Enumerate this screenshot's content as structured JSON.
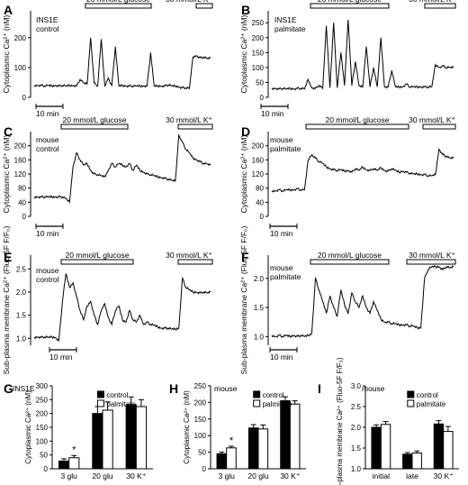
{
  "chart_data": [
    {
      "panel": "A",
      "type": "line",
      "ylabel": "Cytoplasmic Ca²⁺ (nM)",
      "yticks": [
        0,
        100,
        200
      ],
      "ylim": [
        0,
        290
      ],
      "label_lines": [
        "INS1E",
        "control"
      ],
      "stimuli": [
        {
          "label": "20 mmol/L glucose"
        },
        {
          "label": "30 mmol/L K⁺"
        }
      ],
      "scale_bar": "10 min",
      "series": [
        {
          "x": [
            0,
            1,
            2,
            3,
            4,
            5,
            6,
            7,
            8,
            9,
            10,
            11,
            12,
            13,
            14,
            15,
            16,
            17,
            18,
            19,
            20,
            21,
            22,
            23,
            24,
            25,
            26,
            27,
            28,
            29,
            30,
            31,
            32,
            33,
            34,
            35,
            36,
            37,
            38,
            39,
            40,
            41,
            42,
            43,
            44,
            45,
            46,
            47,
            48,
            49,
            50
          ],
          "y": [
            40,
            40,
            40,
            38,
            40,
            38,
            40,
            38,
            40,
            38,
            40,
            40,
            38,
            60,
            48,
            45,
            200,
            48,
            38,
            195,
            38,
            65,
            38,
            170,
            38,
            40,
            38,
            38,
            38,
            38,
            38,
            38,
            38,
            150,
            38,
            38,
            38,
            38,
            42,
            38,
            38,
            35,
            32,
            32,
            30,
            135,
            140,
            132,
            135,
            130,
            132
          ]
        }
      ]
    },
    {
      "panel": "B",
      "type": "line",
      "ylabel": "Cytoplasmic Ca²⁺ (nM)",
      "yticks": [
        0,
        50,
        100,
        150,
        200,
        250
      ],
      "ylim": [
        0,
        290
      ],
      "label_lines": [
        "INS1E",
        "palmitate"
      ],
      "stimuli": [
        {
          "label": "20 mmol/L glucose"
        },
        {
          "label": "30 mmol/L K⁺"
        }
      ],
      "scale_bar": "10 min",
      "series": [
        {
          "x": [
            0,
            1,
            2,
            3,
            4,
            5,
            6,
            7,
            8,
            9,
            10,
            11,
            12,
            13,
            14,
            15,
            16,
            17,
            18,
            19,
            20,
            21,
            22,
            23,
            24,
            25,
            26,
            27,
            28,
            29,
            30,
            31,
            32,
            33,
            34,
            35,
            36,
            37,
            38,
            39,
            40,
            41,
            42,
            43,
            44,
            45,
            46,
            47,
            48,
            49,
            50
          ],
          "y": [
            30,
            30,
            28,
            30,
            28,
            30,
            28,
            30,
            30,
            28,
            60,
            32,
            30,
            40,
            30,
            240,
            32,
            250,
            32,
            150,
            40,
            260,
            40,
            120,
            38,
            35,
            170,
            35,
            100,
            35,
            200,
            35,
            35,
            90,
            35,
            35,
            35,
            45,
            35,
            35,
            35,
            35,
            35,
            35,
            35,
            110,
            100,
            105,
            100,
            100,
            100
          ]
        }
      ]
    },
    {
      "panel": "C",
      "type": "line",
      "ylabel": "Cytoplasmic Ca²⁺ (nM)",
      "yticks": [
        0,
        40,
        80,
        120,
        160,
        200
      ],
      "ylim": [
        0,
        240
      ],
      "label_lines": [
        "mouse",
        "control"
      ],
      "stimuli": [
        {
          "label": "20 mmol/L glucose"
        },
        {
          "label": "30 mmol/L K⁺"
        }
      ],
      "scale_bar": "10 min",
      "series": [
        {
          "x": [
            0,
            1,
            2,
            3,
            4,
            5,
            6,
            7,
            8,
            9,
            10,
            11,
            12,
            13,
            14,
            15,
            16,
            17,
            18,
            19,
            20,
            21,
            22,
            23,
            24,
            25,
            26,
            27,
            28,
            29,
            30,
            31,
            32,
            33,
            34,
            35,
            36,
            37,
            38,
            39,
            40,
            41,
            42,
            43,
            44,
            45,
            46,
            47,
            48,
            49,
            50
          ],
          "y": [
            55,
            55,
            55,
            55,
            55,
            55,
            55,
            55,
            55,
            50,
            40,
            140,
            180,
            160,
            145,
            150,
            130,
            120,
            118,
            115,
            112,
            130,
            150,
            140,
            150,
            145,
            140,
            150,
            130,
            145,
            130,
            125,
            120,
            118,
            115,
            112,
            110,
            108,
            105,
            102,
            100,
            230,
            210,
            190,
            180,
            165,
            160,
            155,
            150,
            148,
            145
          ]
        }
      ]
    },
    {
      "panel": "D",
      "type": "line",
      "ylabel": "Cytoplasmic Ca²⁺ (nM)",
      "yticks": [
        0,
        40,
        80,
        120,
        160,
        200
      ],
      "ylim": [
        0,
        240
      ],
      "label_lines": [
        "mouse",
        "palmitate"
      ],
      "stimuli": [
        {
          "label": "20 mmol/L glucose"
        },
        {
          "label": "30 mmol/L K⁺"
        }
      ],
      "scale_bar": "10 min",
      "series": [
        {
          "x": [
            0,
            1,
            2,
            3,
            4,
            5,
            6,
            7,
            8,
            9,
            10,
            11,
            12,
            13,
            14,
            15,
            16,
            17,
            18,
            19,
            20,
            21,
            22,
            23,
            24,
            25,
            26,
            27,
            28,
            29,
            30,
            31,
            32,
            33,
            34,
            35,
            36,
            37,
            38,
            39,
            40,
            41,
            42,
            43,
            44,
            45,
            46,
            47,
            48,
            49,
            50
          ],
          "y": [
            72,
            72,
            75,
            72,
            75,
            75,
            75,
            78,
            75,
            75,
            160,
            175,
            165,
            155,
            150,
            140,
            135,
            132,
            130,
            132,
            128,
            130,
            125,
            135,
            130,
            140,
            132,
            130,
            135,
            130,
            138,
            130,
            128,
            135,
            130,
            125,
            128,
            125,
            122,
            120,
            120,
            118,
            118,
            115,
            115,
            118,
            190,
            175,
            170,
            165,
            165
          ]
        }
      ]
    },
    {
      "panel": "E",
      "type": "line",
      "ylabel": "Sub-plasma membrane Ca²⁺ (Fluo-5F F/F₀)",
      "yticks": [
        1.0,
        1.5,
        2.0,
        2.5
      ],
      "ylim": [
        0.85,
        2.8
      ],
      "label_lines": [
        "mouse",
        "control"
      ],
      "stimuli": [
        {
          "label": "20 mmol/L glucose"
        },
        {
          "label": "30 mmol/L K⁺"
        }
      ],
      "scale_bar": "10 min",
      "series": [
        {
          "x": [
            0,
            1,
            2,
            3,
            4,
            5,
            6,
            7,
            8,
            9,
            10,
            11,
            12,
            13,
            14,
            15,
            16,
            17,
            18,
            19,
            20,
            21,
            22,
            23,
            24,
            25,
            26,
            27,
            28,
            29,
            30,
            31,
            32,
            33,
            34,
            35,
            36,
            37,
            38,
            39,
            40,
            41,
            42,
            43,
            44,
            45,
            46,
            47,
            48,
            49,
            50
          ],
          "y": [
            1.02,
            1.03,
            1.02,
            1.03,
            1.02,
            1.03,
            1.02,
            0.95,
            1.8,
            2.4,
            2.1,
            2.2,
            1.9,
            1.6,
            1.4,
            1.7,
            1.8,
            1.5,
            1.3,
            1.6,
            1.75,
            1.45,
            1.3,
            1.6,
            1.7,
            1.4,
            1.35,
            1.6,
            1.4,
            1.35,
            1.5,
            1.3,
            1.35,
            1.3,
            1.28,
            1.25,
            1.22,
            1.22,
            1.22,
            1.2,
            1.2,
            1.22,
            2.3,
            2.1,
            2.05,
            2.0,
            2.0,
            1.98,
            2.0,
            1.98,
            2.0
          ]
        }
      ]
    },
    {
      "panel": "F",
      "type": "line",
      "ylabel": "Sub-plasma membrane Ca²⁺ (Fluo-5F F/F₀)",
      "yticks": [
        1.0,
        1.5,
        2.0
      ],
      "ylim": [
        0.85,
        2.4
      ],
      "label_lines": [
        "mouse",
        "palmitate"
      ],
      "stimuli": [
        {
          "label": "20 mmol/L glucose"
        },
        {
          "label": "30 mmol/L K⁺"
        }
      ],
      "scale_bar": "10 min",
      "series": [
        {
          "x": [
            0,
            1,
            2,
            3,
            4,
            5,
            6,
            7,
            8,
            9,
            10,
            11,
            12,
            13,
            14,
            15,
            16,
            17,
            18,
            19,
            20,
            21,
            22,
            23,
            24,
            25,
            26,
            27,
            28,
            29,
            30,
            31,
            32,
            33,
            34,
            35,
            36,
            37,
            38,
            39,
            40,
            41,
            42,
            43,
            44,
            45,
            46,
            47,
            48,
            49,
            50
          ],
          "y": [
            1.02,
            1.0,
            1.02,
            1.0,
            1.02,
            1.0,
            1.02,
            1.0,
            1.02,
            1.0,
            1.02,
            1.05,
            2.0,
            1.8,
            1.6,
            1.4,
            1.7,
            1.5,
            1.35,
            1.8,
            1.55,
            1.4,
            1.75,
            1.6,
            1.5,
            1.7,
            1.5,
            1.4,
            1.6,
            1.45,
            1.3,
            1.25,
            1.25,
            1.22,
            1.22,
            1.2,
            1.2,
            1.2,
            1.18,
            1.18,
            1.15,
            1.15,
            2.0,
            2.15,
            2.2,
            2.2,
            2.2,
            2.15,
            2.2,
            2.18,
            2.2
          ]
        }
      ]
    },
    {
      "panel": "G",
      "type": "bar",
      "ylabel": "Cytoplasmic Ca²⁺ (nM)",
      "title": "INS1E",
      "yticks": [
        0,
        50,
        100,
        150,
        200,
        250,
        300
      ],
      "ylim": [
        0,
        300
      ],
      "categories": [
        "3 glu",
        "20 glu",
        "30 K⁺"
      ],
      "series": [
        {
          "name": "control",
          "values": [
            28,
            200,
            232
          ],
          "errors": [
            8,
            25,
            28
          ]
        },
        {
          "name": "palmitate",
          "values": [
            40,
            212,
            225
          ],
          "errors": [
            8,
            30,
            25
          ]
        }
      ],
      "annotations": [
        {
          "text": "*",
          "category": "3 glu"
        }
      ],
      "legend": "top-right"
    },
    {
      "panel": "H",
      "type": "bar",
      "ylabel": "Cytoplasmic Ca²⁺ (nM)",
      "title": "mouse",
      "yticks": [
        0,
        50,
        100,
        150,
        200,
        250
      ],
      "ylim": [
        0,
        250
      ],
      "categories": [
        "3 glu",
        "20 glu",
        "30 K⁺"
      ],
      "series": [
        {
          "name": "control",
          "values": [
            45,
            123,
            205
          ],
          "errors": [
            5,
            10,
            12
          ]
        },
        {
          "name": "palmitate",
          "values": [
            63,
            120,
            195
          ],
          "errors": [
            5,
            12,
            10
          ]
        }
      ],
      "annotations": [
        {
          "text": "*",
          "category": "3 glu"
        }
      ],
      "legend": "top-right"
    },
    {
      "panel": "I",
      "type": "bar",
      "ylabel": "Sub-plasma membrane Ca²⁺ (Fluo-5F F/F₀)",
      "title": "mouse",
      "yticks": [
        1.0,
        1.5,
        2.0,
        2.5,
        3.0
      ],
      "ylim": [
        1.0,
        3.0
      ],
      "categories": [
        "initial",
        "late",
        "30 K⁺"
      ],
      "series": [
        {
          "name": "control",
          "values": [
            2.0,
            1.35,
            2.08
          ],
          "errors": [
            0.06,
            0.04,
            0.08
          ]
        },
        {
          "name": "palmitate",
          "values": [
            2.07,
            1.38,
            1.9
          ],
          "errors": [
            0.07,
            0.05,
            0.12
          ]
        }
      ],
      "legend": "top-right"
    }
  ]
}
